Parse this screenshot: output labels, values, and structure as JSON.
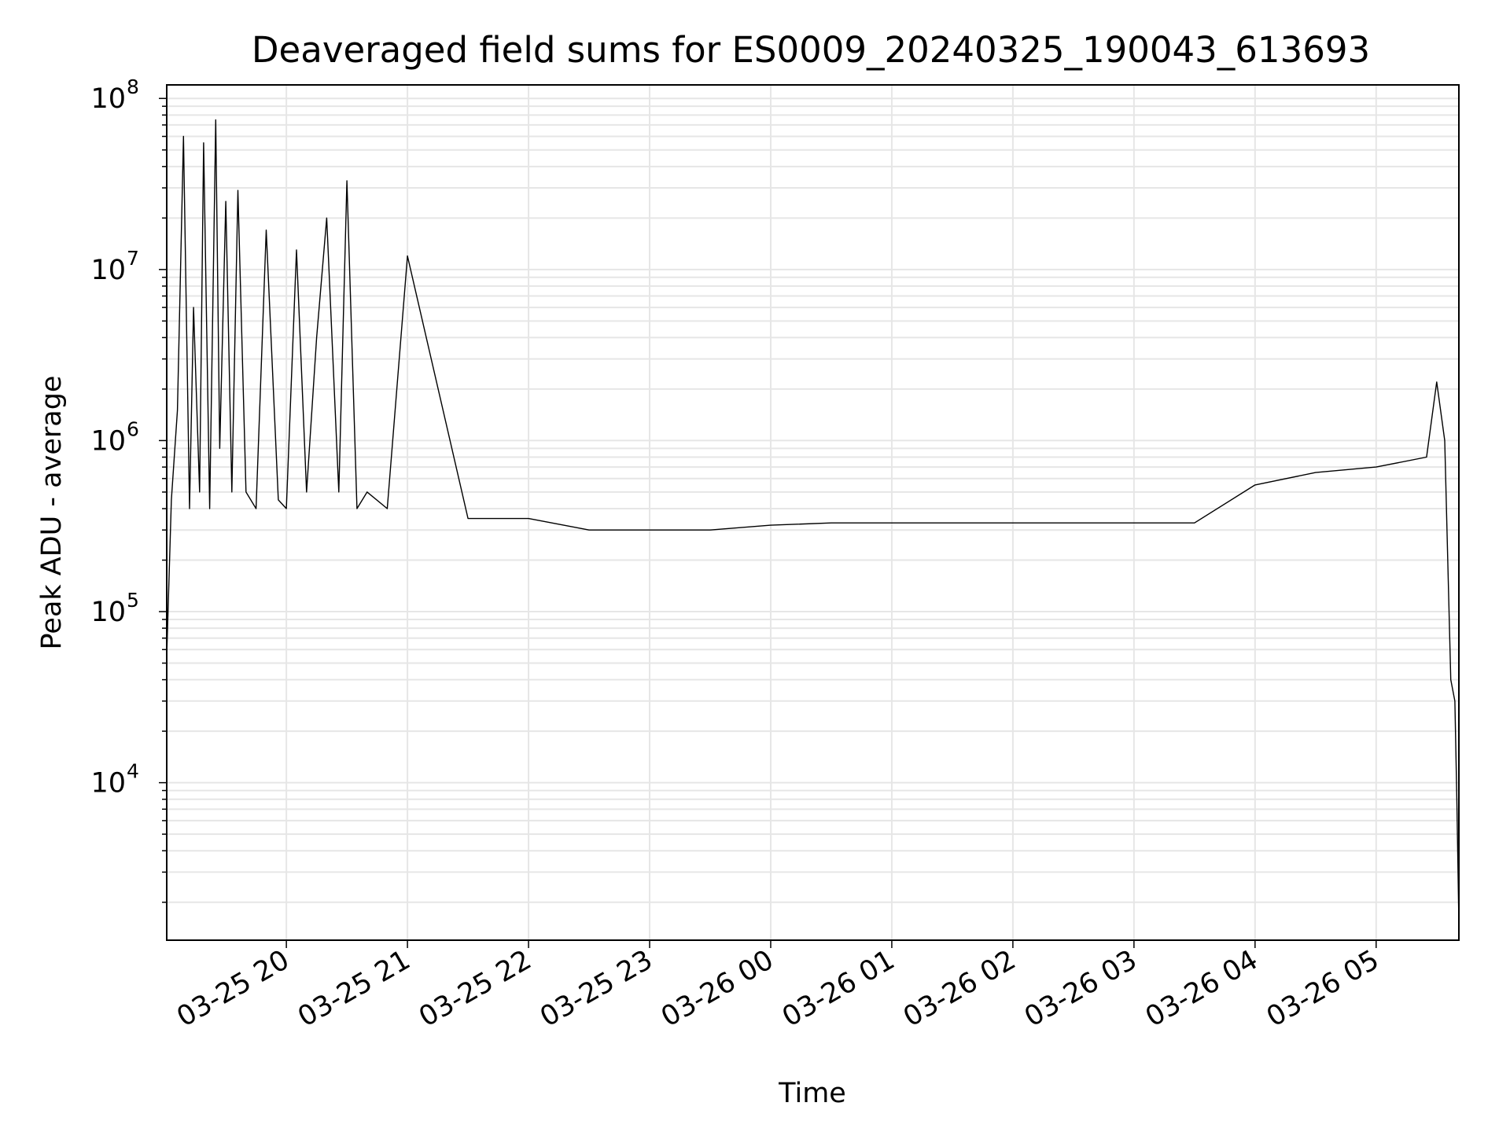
{
  "chart_data": {
    "type": "line",
    "title": "Deaveraged field sums for ES0009_20240325_190043_613693",
    "xlabel": "Time",
    "ylabel": "Peak ADU - average",
    "x_ticks": [
      "03-25 20",
      "03-25 21",
      "03-25 22",
      "03-25 23",
      "03-26 00",
      "03-26 01",
      "03-26 02",
      "03-26 03",
      "03-26 04",
      "03-26 05"
    ],
    "y_ticks": [
      {
        "base": "10",
        "exp": "4",
        "value": 10000
      },
      {
        "base": "10",
        "exp": "5",
        "value": 100000
      },
      {
        "base": "10",
        "exp": "6",
        "value": 1000000
      },
      {
        "base": "10",
        "exp": "7",
        "value": 10000000
      },
      {
        "base": "10",
        "exp": "8",
        "value": 100000000
      }
    ],
    "xlim": [
      "2024-03-25 19:00:43",
      "2024-03-26 05:41:00"
    ],
    "ylim": [
      1200,
      120000000
    ],
    "yscale": "log",
    "grid": true,
    "line_color": "#000000",
    "grid_color": "#e6e6e6",
    "series": [
      {
        "x": [
          "2024-03-25 19:00:43",
          "2024-03-25 19:03:00",
          "2024-03-25 19:06:00",
          "2024-03-25 19:09:00",
          "2024-03-25 19:12:00",
          "2024-03-25 19:14:00",
          "2024-03-25 19:17:00",
          "2024-03-25 19:19:00",
          "2024-03-25 19:22:00",
          "2024-03-25 19:25:00",
          "2024-03-25 19:27:00",
          "2024-03-25 19:30:00",
          "2024-03-25 19:33:00",
          "2024-03-25 19:36:00",
          "2024-03-25 19:40:00",
          "2024-03-25 19:45:00",
          "2024-03-25 19:50:00",
          "2024-03-25 19:56:00",
          "2024-03-25 20:00:00",
          "2024-03-25 20:05:00",
          "2024-03-25 20:10:00",
          "2024-03-25 20:15:00",
          "2024-03-25 20:20:00",
          "2024-03-25 20:26:00",
          "2024-03-25 20:30:00",
          "2024-03-25 20:35:00",
          "2024-03-25 20:40:00",
          "2024-03-25 20:50:00",
          "2024-03-25 21:00:00",
          "2024-03-25 21:30:00",
          "2024-03-25 22:00:00",
          "2024-03-25 22:30:00",
          "2024-03-25 23:00:00",
          "2024-03-25 23:30:00",
          "2024-03-26 00:00:00",
          "2024-03-26 00:30:00",
          "2024-03-26 01:00:00",
          "2024-03-26 01:30:00",
          "2024-03-26 02:00:00",
          "2024-03-26 02:30:00",
          "2024-03-26 03:00:00",
          "2024-03-26 03:30:00",
          "2024-03-26 04:00:00",
          "2024-03-26 04:30:00",
          "2024-03-26 05:00:00",
          "2024-03-26 05:25:00",
          "2024-03-26 05:30:00",
          "2024-03-26 05:34:00",
          "2024-03-26 05:37:00",
          "2024-03-26 05:39:00",
          "2024-03-26 05:40:00",
          "2024-03-26 05:41:00"
        ],
        "y": [
          55000,
          450000,
          1500000,
          60000000,
          400000,
          6000000,
          500000,
          55000000,
          400000,
          75000000,
          900000,
          25000000,
          500000,
          29000000,
          500000,
          400000,
          17000000,
          450000,
          400000,
          13000000,
          500000,
          4000000,
          20000000,
          500000,
          33000000,
          400000,
          500000,
          400000,
          12000000,
          350000,
          350000,
          300000,
          300000,
          300000,
          320000,
          330000,
          330000,
          330000,
          330000,
          330000,
          330000,
          330000,
          550000,
          650000,
          700000,
          800000,
          2200000,
          1000000,
          40000,
          30000,
          8000,
          1500
        ]
      }
    ]
  }
}
